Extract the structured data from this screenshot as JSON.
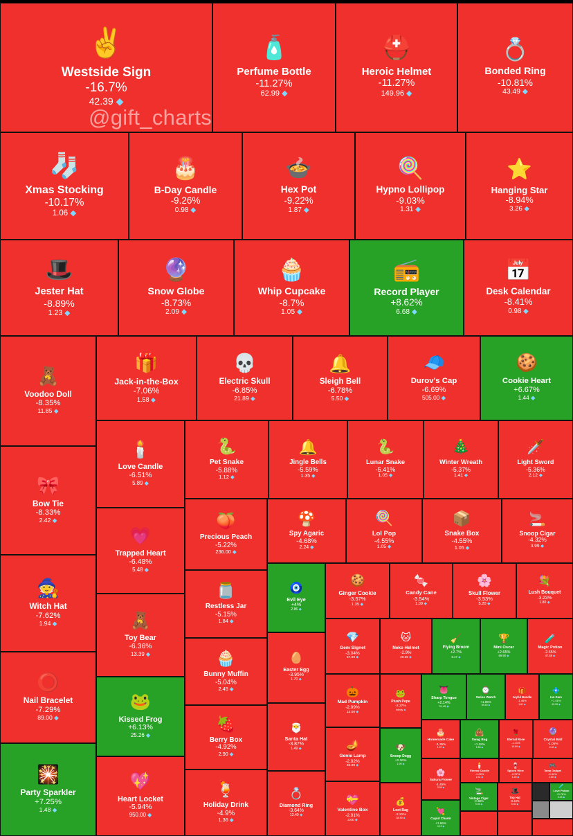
{
  "watermark": "@gift_charts",
  "colors": {
    "down": "#f0302c",
    "up": "#27a126",
    "border": "#101010",
    "diamond": "#7fd8ff"
  },
  "currency_icon": "diamond-icon",
  "chart_data": {
    "type": "heatmap",
    "title": "",
    "items": [
      {
        "name": "Westside Sign",
        "change": "-16.7%",
        "price": "42.39",
        "icon": "✌️"
      },
      {
        "name": "Perfume Bottle",
        "change": "-11.27%",
        "price": "62.99",
        "icon": "🧴"
      },
      {
        "name": "Heroic Helmet",
        "change": "-11.27%",
        "price": "149.96",
        "icon": "⛑️"
      },
      {
        "name": "Bonded Ring",
        "change": "-10.81%",
        "price": "43.49",
        "icon": "💍"
      },
      {
        "name": "Xmas Stocking",
        "change": "-10.17%",
        "price": "1.06",
        "icon": "🧦"
      },
      {
        "name": "B-Day Candle",
        "change": "-9.26%",
        "price": "0.98",
        "icon": "🎂"
      },
      {
        "name": "Hex Pot",
        "change": "-9.22%",
        "price": "1.87",
        "icon": "🍲"
      },
      {
        "name": "Hypno Lollipop",
        "change": "-9.03%",
        "price": "1.31",
        "icon": "🍭"
      },
      {
        "name": "Hanging Star",
        "change": "-8.94%",
        "price": "3.26",
        "icon": "⭐"
      },
      {
        "name": "Jester Hat",
        "change": "-8.89%",
        "price": "1.23",
        "icon": "🎩"
      },
      {
        "name": "Snow Globe",
        "change": "-8.73%",
        "price": "2.09",
        "icon": "🔮"
      },
      {
        "name": "Whip Cupcake",
        "change": "-8.7%",
        "price": "1.05",
        "icon": "🧁"
      },
      {
        "name": "Record Player",
        "change": "+8.62%",
        "price": "6.68",
        "icon": "📻"
      },
      {
        "name": "Desk Calendar",
        "change": "-8.41%",
        "price": "0.98",
        "icon": "📅"
      },
      {
        "name": "Voodoo Doll",
        "change": "-8.35%",
        "price": "11.85",
        "icon": "🧸"
      },
      {
        "name": "Jack-in-the-Box",
        "change": "-7.06%",
        "price": "1.58",
        "icon": "🎁"
      },
      {
        "name": "Electric Skull",
        "change": "-6.85%",
        "price": "21.89",
        "icon": "💀"
      },
      {
        "name": "Sleigh Bell",
        "change": "-6.78%",
        "price": "5.50",
        "icon": "🔔"
      },
      {
        "name": "Durov's Cap",
        "change": "-6.69%",
        "price": "505.00",
        "icon": "🧢"
      },
      {
        "name": "Cookie Heart",
        "change": "+6.67%",
        "price": "1.44",
        "icon": "🍪"
      },
      {
        "name": "Love Candle",
        "change": "-6.51%",
        "price": "5.89",
        "icon": "🕯️"
      },
      {
        "name": "Pet Snake",
        "change": "-5.88%",
        "price": "1.12",
        "icon": "🐍"
      },
      {
        "name": "Jingle Bells",
        "change": "-5.59%",
        "price": "1.35",
        "icon": "🔔"
      },
      {
        "name": "Lunar Snake",
        "change": "-5.41%",
        "price": "1.05",
        "icon": "🐍"
      },
      {
        "name": "Winter Wreath",
        "change": "-5.37%",
        "price": "1.41",
        "icon": "🎄"
      },
      {
        "name": "Light Sword",
        "change": "-5.36%",
        "price": "2.12",
        "icon": "🗡️"
      },
      {
        "name": "Bow Tie",
        "change": "-8.33%",
        "price": "2.42",
        "icon": "🎀"
      },
      {
        "name": "Trapped Heart",
        "change": "-6.48%",
        "price": "5.48",
        "icon": "💗"
      },
      {
        "name": "Precious Peach",
        "change": "-5.22%",
        "price": "236.00",
        "icon": "🍑"
      },
      {
        "name": "Spy Agaric",
        "change": "-4.68%",
        "price": "2.24",
        "icon": "🍄"
      },
      {
        "name": "Lol Pop",
        "change": "-4.55%",
        "price": "1.05",
        "icon": "🍭"
      },
      {
        "name": "Snake Box",
        "change": "-4.55%",
        "price": "1.05",
        "icon": "📦"
      },
      {
        "name": "Snoop Cigar",
        "change": "-4.32%",
        "price": "3.99",
        "icon": "🚬"
      },
      {
        "name": "Witch Hat",
        "change": "-7.62%",
        "price": "1.94",
        "icon": "🧙"
      },
      {
        "name": "Toy Bear",
        "change": "-6.36%",
        "price": "13.39",
        "icon": "🧸"
      },
      {
        "name": "Restless Jar",
        "change": "-5.15%",
        "price": "1.84",
        "icon": "🫙"
      },
      {
        "name": "Evil Eye",
        "change": "+4%",
        "price": "2.86",
        "icon": "🧿"
      },
      {
        "name": "Ginger Cookie",
        "change": "-3.57%",
        "price": "1.35",
        "icon": "🍪"
      },
      {
        "name": "Candy Cane",
        "change": "-3.54%",
        "price": "1.09",
        "icon": "🍬"
      },
      {
        "name": "Skull Flower",
        "change": "-3.53%",
        "price": "5.20",
        "icon": "🌸"
      },
      {
        "name": "Lush Bouquet",
        "change": "-3.23%",
        "price": "1.80",
        "icon": "💐"
      },
      {
        "name": "Bunny Muffin",
        "change": "-5.04%",
        "price": "2.45",
        "icon": "🧁"
      },
      {
        "name": "Gem Signet",
        "change": "-3.04%",
        "price": "57.69",
        "icon": "💎"
      },
      {
        "name": "Neko Helmet",
        "change": "-2.9%",
        "price": "20.39",
        "icon": "🐱"
      },
      {
        "name": "Flying Broom",
        "change": "+2.7%",
        "price": "6.47",
        "icon": "🧹"
      },
      {
        "name": "Mini Oscar",
        "change": "+2.65%",
        "price": "69.90",
        "icon": "🏆"
      },
      {
        "name": "Magic Potion",
        "change": "-2.55%",
        "price": "47.59",
        "icon": "🧪"
      },
      {
        "name": "Easter Egg",
        "change": "-3.95%",
        "price": "1.70",
        "icon": "🥚"
      },
      {
        "name": "Nail Bracelet",
        "change": "-7.29%",
        "price": "89.00",
        "icon": "⭕"
      },
      {
        "name": "Kissed Frog",
        "change": "+6.13%",
        "price": "25.26",
        "icon": "🐸"
      },
      {
        "name": "Mad Pumpkin",
        "change": "-2.99%",
        "price": "13.00",
        "icon": "🎃"
      },
      {
        "name": "Plush Pepe",
        "change": "-2.37%",
        "price": "Infinity",
        "icon": "🐸"
      },
      {
        "name": "Sharp Tongue",
        "change": "+2.14%",
        "price": "31.45",
        "icon": "👅"
      },
      {
        "name": "Swiss Watch",
        "change": "+1.85%",
        "price": "89.40",
        "icon": "⌚"
      },
      {
        "name": "Joyful Bundle",
        "change": "-1.46%",
        "price": "1.61",
        "icon": "🎁"
      },
      {
        "name": "Ion Gem",
        "change": "+1.41%",
        "price": "49.99",
        "icon": "💠"
      },
      {
        "name": "Berry Box",
        "change": "-4.92%",
        "price": "2.90",
        "icon": "🍓"
      },
      {
        "name": "Santa Hat",
        "change": "-3.87%",
        "price": "1.49",
        "icon": "🎅"
      },
      {
        "name": "Homemade Cake",
        "change": "-1.35%",
        "price": "1.07",
        "icon": "🎂"
      },
      {
        "name": "Swag Bag",
        "change": "+1.28%",
        "price": "1.83",
        "icon": "👜"
      },
      {
        "name": "Eternal Rose",
        "change": "-1.11%",
        "price": "10.99",
        "icon": "🌹"
      },
      {
        "name": "Crystal Ball",
        "change": "-1.05%",
        "price": "4.40",
        "icon": "🔮"
      },
      {
        "name": "Genie Lamp",
        "change": "-2.92%",
        "price": "36.89",
        "icon": "🪔"
      },
      {
        "name": "Snoop Dogg",
        "change": "+2.36%",
        "price": "1.90",
        "icon": "🐶"
      },
      {
        "name": "Eternal Candle",
        "change": "-1.05%",
        "price": "2.41",
        "icon": "🕯️"
      },
      {
        "name": "Spiced Wine",
        "change": "-0.97%",
        "price": "1.45",
        "icon": "🍷"
      },
      {
        "name": "Tama Gadget",
        "change": "-0.94%",
        "price": "1.60",
        "icon": "🎮"
      },
      {
        "name": "Loot Bag",
        "change": "-2.21%",
        "price": "38.90",
        "icon": "💰"
      },
      {
        "name": "Sakura Flower",
        "change": "-1.45%",
        "price": "3.05",
        "icon": "🌸"
      },
      {
        "name": "Vintage Cigar",
        "change": "+0.88%",
        "price": "9.35",
        "icon": "🚬"
      },
      {
        "name": "Top Hat",
        "change": "-0.48%",
        "price": "5.00",
        "icon": "🎩"
      },
      {
        "name": "Cupid Charm",
        "change": "+1.96%",
        "price": "4.19",
        "icon": "💘"
      },
      {
        "name": "Love Potion",
        "change": "+0.78%",
        "price": "3.34",
        "icon": "🧪"
      },
      {
        "name": "Holiday Drink",
        "change": "-4.9%",
        "price": "1.36",
        "icon": "🍹"
      },
      {
        "name": "Diamond Ring",
        "change": "-3.64%",
        "price": "13.49",
        "icon": "💍"
      },
      {
        "name": "Valentine Box",
        "change": "-2.91%",
        "price": "3.00",
        "icon": "💝"
      },
      {
        "name": "Heart Locket",
        "change": "-5.94%",
        "price": "950.00",
        "icon": "💖"
      },
      {
        "name": "Party Sparkler",
        "change": "+7.25%",
        "price": "1.48",
        "icon": "🎇"
      }
    ]
  }
}
